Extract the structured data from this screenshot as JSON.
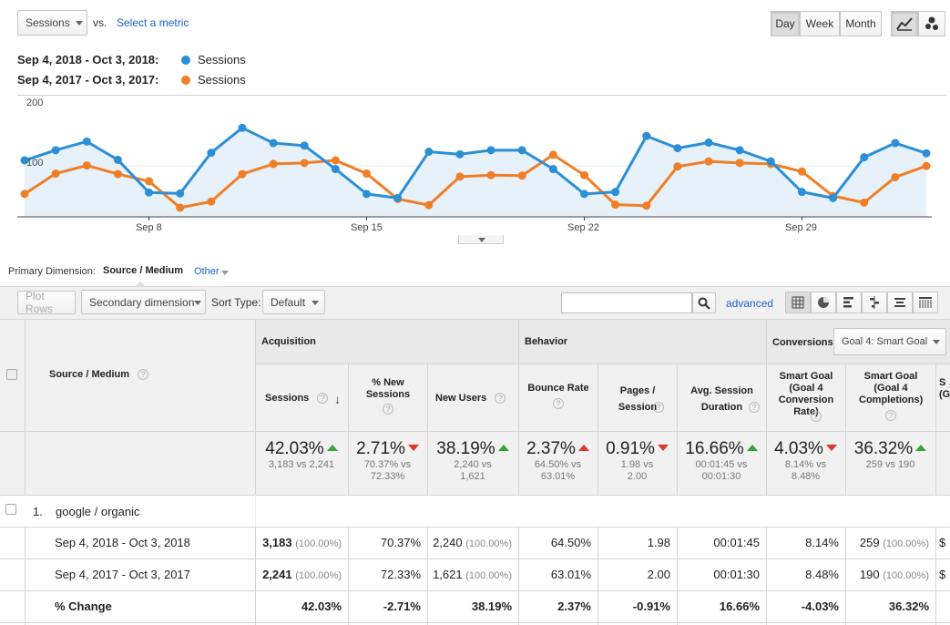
{
  "controls": {
    "metric_select": "Sessions",
    "vs_label": "vs.",
    "select_metric_link": "Select a metric",
    "granularity": [
      "Day",
      "Week",
      "Month"
    ],
    "active_granularity": "Day",
    "chart_mode_icons": [
      "line-chart-icon",
      "motion-chart-icon"
    ]
  },
  "legend": {
    "range_current": "Sep 4, 2018 - Oct 3, 2018:",
    "range_previous": "Sep 4, 2017 - Oct 3, 2017:",
    "series_current": "Sessions",
    "series_previous": "Sessions"
  },
  "colors": {
    "current": "#2b8fd6",
    "previous": "#f07e26",
    "area": "#e6f1fa",
    "up": "#36a336",
    "down": "#e0352b"
  },
  "chart_data": {
    "type": "line",
    "y_ticks": [
      "200",
      "100"
    ],
    "ylim": [
      0,
      240
    ],
    "x_labels": [
      "Sep 8",
      "Sep 15",
      "Sep 22",
      "Sep 29"
    ],
    "x_label_days": [
      4,
      11,
      18,
      25
    ],
    "series": [
      {
        "values": [
          111,
          131,
          148,
          112,
          48,
          46,
          126,
          175,
          145,
          140,
          94,
          45,
          37,
          128,
          123,
          131,
          131,
          94,
          45,
          49,
          159,
          135,
          146,
          131,
          109,
          49,
          37,
          117,
          145,
          125
        ],
        "fill": true
      },
      {
        "values": [
          45,
          85,
          101,
          84,
          70,
          18,
          30,
          84,
          104,
          106,
          111,
          85,
          35,
          23,
          79,
          82,
          81,
          122,
          82,
          24,
          22,
          99,
          109,
          106,
          104,
          89,
          41,
          28,
          78,
          100
        ]
      }
    ]
  },
  "dimension": {
    "label": "Primary Dimension:",
    "active": "Source / Medium",
    "other": "Other"
  },
  "toolbar": {
    "plot_rows": "Plot Rows",
    "secondary_dimension": "Secondary dimension",
    "sort_type_label": "Sort Type:",
    "sort_type_value": "Default",
    "search_placeholder": "",
    "advanced": "advanced",
    "view_icons": [
      "table-view-icon",
      "pie-view-icon",
      "performance-view-icon",
      "comparison-view-icon",
      "term-cloud-view-icon",
      "pivot-view-icon"
    ]
  },
  "table": {
    "dim_header": "Source / Medium",
    "groups": {
      "acquisition": "Acquisition",
      "behavior": "Behavior",
      "conversions": "Conversions",
      "goal_select": "Goal 4: Smart Goal"
    },
    "columns": {
      "sessions": "Sessions",
      "new_sessions": "% New Sessions",
      "new_users": "New Users",
      "bounce_rate": "Bounce Rate",
      "pages_session": "Pages / Session",
      "avg_duration": "Avg. Session Duration",
      "conv_rate": "Smart Goal (Goal 4 Conversion Rate)",
      "completions": "Smart Goal (Goal 4 Completions)",
      "partial": "S (G"
    },
    "summary": [
      {
        "pct": "42.03%",
        "dir": "up",
        "sub": "3,183 vs 2,241"
      },
      {
        "pct": "2.71%",
        "dir": "down",
        "sub": "70.37% vs 72.33%"
      },
      {
        "pct": "38.19%",
        "dir": "up",
        "sub": "2,240 vs 1,621"
      },
      {
        "pct": "2.37%",
        "dir": "up-red",
        "sub": "64.50% vs 63.01%"
      },
      {
        "pct": "0.91%",
        "dir": "down",
        "sub": "1.98 vs 2.00"
      },
      {
        "pct": "16.66%",
        "dir": "up",
        "sub": "00:01:45 vs 00:01:30"
      },
      {
        "pct": "4.03%",
        "dir": "down",
        "sub": "8.14% vs 8.48%"
      },
      {
        "pct": "36.32%",
        "dir": "up",
        "sub": "259 vs 190"
      }
    ],
    "row_index": "1.",
    "row_name": "google / organic",
    "rows": [
      {
        "label": "Sep 4, 2018 - Oct 3, 2018",
        "sessions": "3,183",
        "sessions_pct": "(100.00%)",
        "new_sessions": "70.37%",
        "new_users": "2,240",
        "new_users_pct": "(100.00%)",
        "bounce": "64.50%",
        "pages": "1.98",
        "duration": "00:01:45",
        "conv": "8.14%",
        "completions": "259",
        "completions_pct": "(100.00%)",
        "partial": "$"
      },
      {
        "label": "Sep 4, 2017 - Oct 3, 2017",
        "sessions": "2,241",
        "sessions_pct": "(100.00%)",
        "new_sessions": "72.33%",
        "new_users": "1,621",
        "new_users_pct": "(100.00%)",
        "bounce": "63.01%",
        "pages": "2.00",
        "duration": "00:01:30",
        "conv": "8.48%",
        "completions": "190",
        "completions_pct": "(100.00%)",
        "partial": "$"
      }
    ],
    "change_row": {
      "label": "% Change",
      "sessions": "42.03%",
      "new_sessions": "-2.71%",
      "new_users": "38.19%",
      "bounce": "2.37%",
      "pages": "-0.91%",
      "duration": "16.66%",
      "conv": "-4.03%",
      "completions": "36.32%"
    }
  }
}
